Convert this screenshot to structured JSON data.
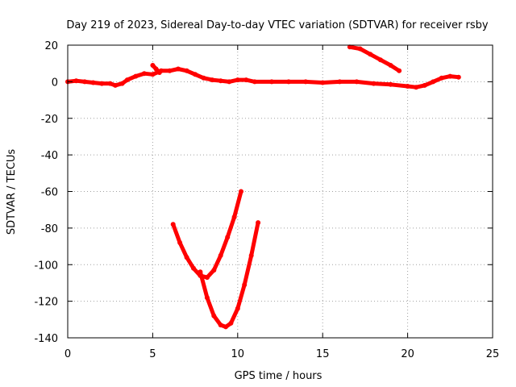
{
  "chart_data": {
    "type": "scatter",
    "title": "Day 219 of 2023, Sidereal Day-to-day VTEC variation (SDTVAR) for receiver rsby",
    "xlabel": "GPS time / hours",
    "ylabel": "SDTVAR / TECUs",
    "xlim": [
      0,
      25
    ],
    "ylim": [
      -140,
      20
    ],
    "xticks": [
      0,
      5,
      10,
      15,
      20,
      25
    ],
    "yticks": [
      20,
      0,
      -20,
      -40,
      -60,
      -80,
      -100,
      -120,
      -140
    ],
    "grid": true,
    "marker_color": "#ff0000",
    "series": [
      {
        "name": "main-trace",
        "x": [
          0,
          0.5,
          1,
          1.5,
          2,
          2.5,
          2.8,
          3.2,
          3.5,
          4,
          4.5,
          5,
          5.5,
          6,
          6.5,
          7,
          7.5,
          8,
          8.5,
          9,
          9.5,
          10,
          10.5,
          11,
          12,
          13,
          14,
          15,
          16,
          17,
          18,
          19,
          20,
          20.5,
          21,
          21.5,
          22,
          22.5,
          23
        ],
        "y": [
          0,
          0.5,
          0,
          -0.5,
          -1,
          -1,
          -2,
          -1,
          1,
          3,
          4.5,
          4,
          6,
          6,
          7,
          6,
          4,
          2,
          1,
          0.5,
          0,
          1,
          1,
          0,
          0,
          0,
          0,
          -0.5,
          0,
          0,
          -1,
          -1.5,
          -2.5,
          -3,
          -2,
          0,
          2,
          3,
          2.5
        ]
      },
      {
        "name": "spike-near-5h",
        "x": [
          5,
          5.2,
          5.4
        ],
        "y": [
          9,
          7,
          5
        ]
      },
      {
        "name": "upper-right-arc",
        "x": [
          16.6,
          17.2,
          17.8,
          18.4,
          19,
          19.5
        ],
        "y": [
          19,
          18,
          15,
          12,
          9,
          6
        ]
      },
      {
        "name": "first-dip",
        "x": [
          6.2,
          6.6,
          7.0,
          7.4,
          7.8,
          8.2,
          8.6,
          9.0,
          9.4,
          9.8,
          10.2
        ],
        "y": [
          -78,
          -88,
          -96,
          -102,
          -106,
          -107,
          -103,
          -95,
          -85,
          -74,
          -60
        ]
      },
      {
        "name": "second-dip",
        "x": [
          7.8,
          8.2,
          8.6,
          9.0,
          9.3,
          9.6,
          10.0,
          10.4,
          10.8,
          11.2
        ],
        "y": [
          -104,
          -118,
          -128,
          -133,
          -134,
          -132,
          -124,
          -111,
          -95,
          -77
        ]
      }
    ]
  }
}
